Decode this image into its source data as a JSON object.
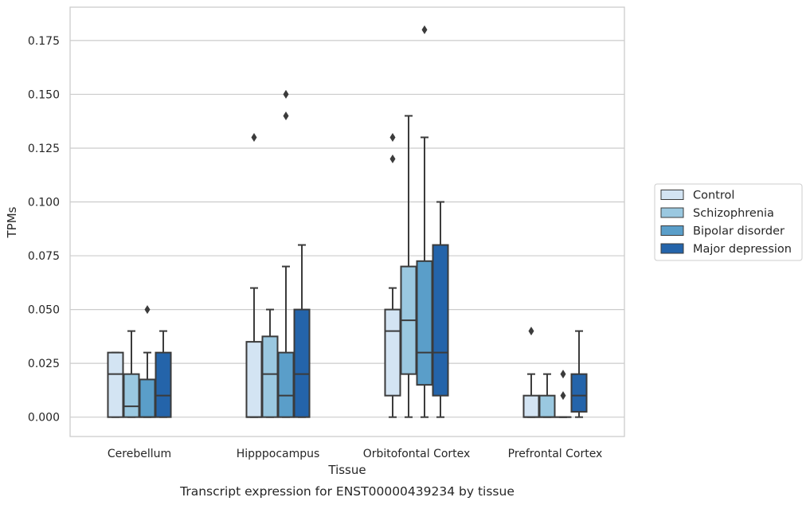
{
  "chart_data": {
    "type": "box",
    "xlabel": "Tissue",
    "ylabel": "TPMs",
    "caption": "Transcript expression for ENST00000439234 by tissue",
    "ylim": [
      -0.009,
      0.1905
    ],
    "yticks": [
      "0.000",
      "0.025",
      "0.050",
      "0.075",
      "0.100",
      "0.125",
      "0.150",
      "0.175"
    ],
    "grid": "horizontal",
    "legend_position": "right",
    "categories": [
      "Cerebellum",
      "Hipppocampus",
      "Orbitofontal Cortex",
      "Prefrontal Cortex"
    ],
    "series": [
      {
        "name": "Control",
        "color": "#d3e4f3",
        "boxes": [
          {
            "whislo": 0,
            "q1": 0,
            "med": 0.02,
            "q3": 0.03,
            "whishi": 0.03,
            "fliers": []
          },
          {
            "whislo": 0,
            "q1": 0,
            "med": 0,
            "q3": 0.035,
            "whishi": 0.06,
            "fliers": [
              0.13
            ]
          },
          {
            "whislo": 0,
            "q1": 0.01,
            "med": 0.04,
            "q3": 0.05,
            "whishi": 0.06,
            "fliers": [
              0.12,
              0.13
            ]
          },
          {
            "whislo": 0,
            "q1": 0,
            "med": 0,
            "q3": 0.01,
            "whishi": 0.02,
            "fliers": [
              0.04
            ]
          }
        ]
      },
      {
        "name": "Schizophrenia",
        "color": "#9ac8e0",
        "boxes": [
          {
            "whislo": 0,
            "q1": 0,
            "med": 0.005,
            "q3": 0.02,
            "whishi": 0.04,
            "fliers": []
          },
          {
            "whislo": 0,
            "q1": 0,
            "med": 0.02,
            "q3": 0.0375,
            "whishi": 0.05,
            "fliers": []
          },
          {
            "whislo": 0,
            "q1": 0.02,
            "med": 0.045,
            "q3": 0.07,
            "whishi": 0.14,
            "fliers": []
          },
          {
            "whislo": 0,
            "q1": 0,
            "med": 0,
            "q3": 0.01,
            "whishi": 0.02,
            "fliers": []
          }
        ]
      },
      {
        "name": "Bipolar disorder",
        "color": "#5a9ec9",
        "boxes": [
          {
            "whislo": 0,
            "q1": 0,
            "med": 0,
            "q3": 0.0175,
            "whishi": 0.03,
            "fliers": [
              0.05
            ]
          },
          {
            "whislo": 0,
            "q1": 0,
            "med": 0.01,
            "q3": 0.03,
            "whishi": 0.07,
            "fliers": [
              0.14,
              0.15
            ]
          },
          {
            "whislo": 0,
            "q1": 0.015,
            "med": 0.03,
            "q3": 0.0725,
            "whishi": 0.13,
            "fliers": [
              0.18
            ]
          },
          {
            "whislo": 0,
            "q1": 0,
            "med": 0,
            "q3": 0,
            "whishi": 0,
            "fliers": [
              0.01,
              0.02
            ]
          }
        ]
      },
      {
        "name": "Major depression",
        "color": "#2464aa",
        "boxes": [
          {
            "whislo": 0,
            "q1": 0,
            "med": 0.01,
            "q3": 0.03,
            "whishi": 0.04,
            "fliers": []
          },
          {
            "whislo": 0,
            "q1": 0,
            "med": 0.02,
            "q3": 0.05,
            "whishi": 0.08,
            "fliers": []
          },
          {
            "whislo": 0,
            "q1": 0.01,
            "med": 0.03,
            "q3": 0.08,
            "whishi": 0.1,
            "fliers": []
          },
          {
            "whislo": 0,
            "q1": 0.0025,
            "med": 0.01,
            "q3": 0.02,
            "whishi": 0.04,
            "fliers": []
          }
        ]
      }
    ]
  }
}
